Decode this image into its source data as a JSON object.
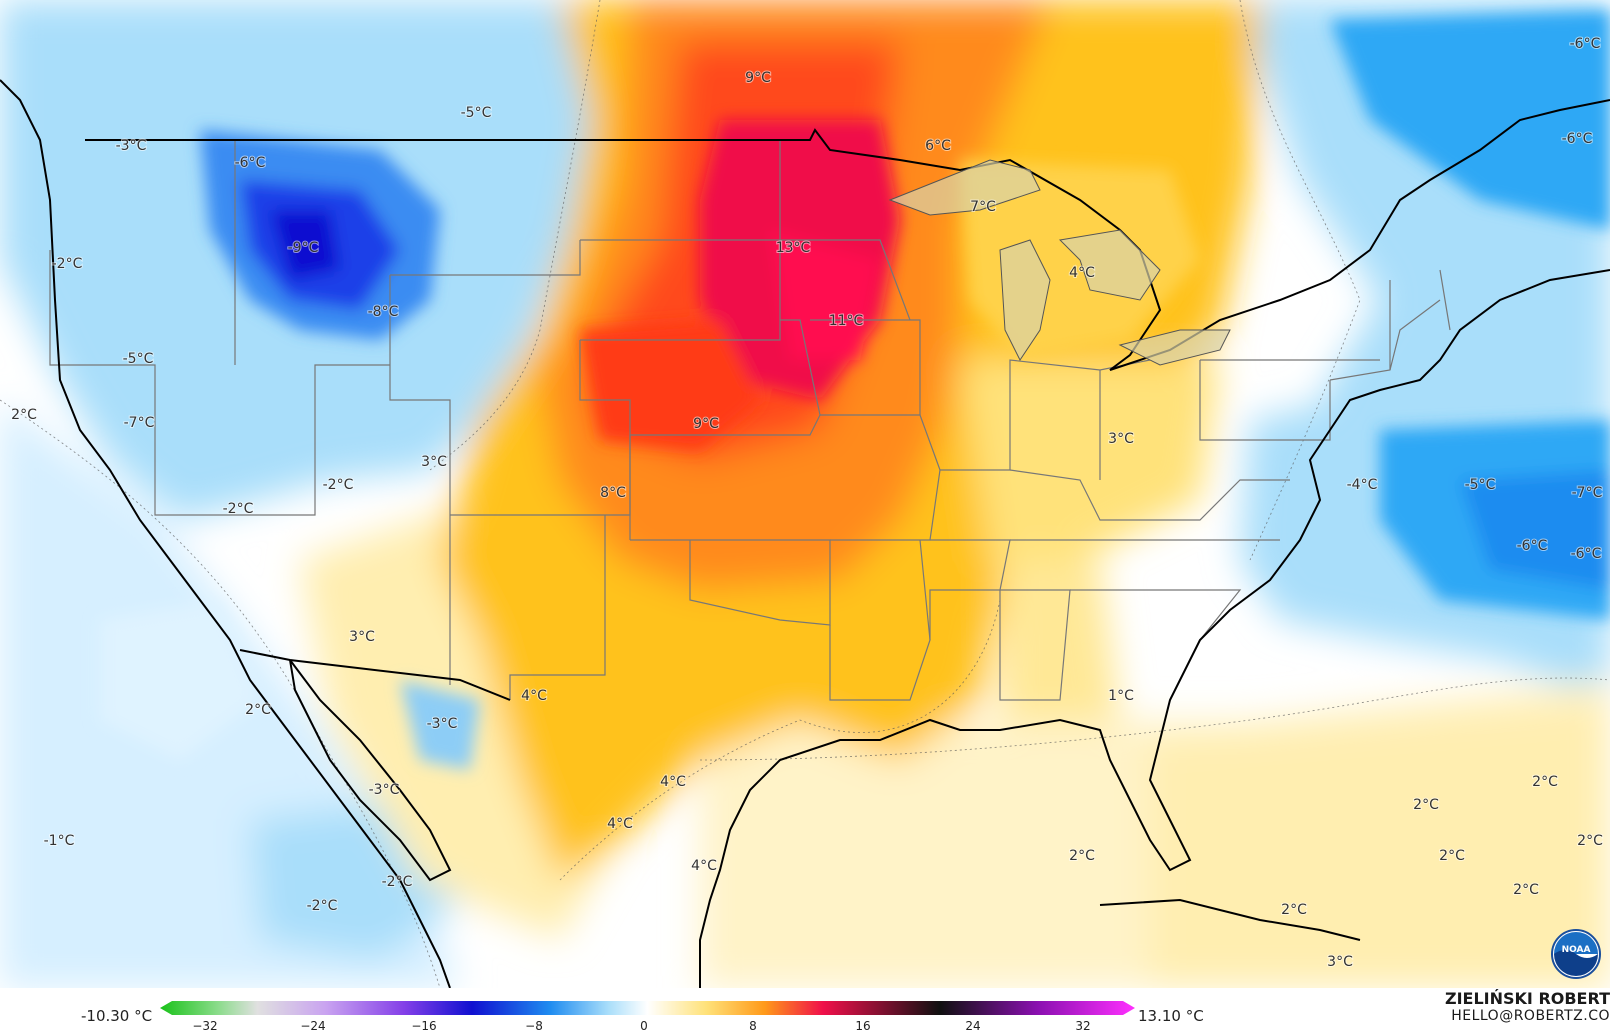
{
  "map": {
    "labels": [
      {
        "text": "9°C"
      },
      {
        "text": "6°C"
      },
      {
        "text": "-5°C"
      },
      {
        "text": "-3°C"
      },
      {
        "text": "-6°C"
      },
      {
        "text": "-9°C"
      },
      {
        "text": "-8°C"
      },
      {
        "text": "-2°C"
      },
      {
        "text": "-5°C"
      },
      {
        "text": "2°C"
      },
      {
        "text": "-7°C"
      },
      {
        "text": "3°C"
      },
      {
        "text": "-2°C"
      },
      {
        "text": "-2°C"
      },
      {
        "text": "13°C"
      },
      {
        "text": "11°C"
      },
      {
        "text": "9°C"
      },
      {
        "text": "8°C"
      },
      {
        "text": "7°C"
      },
      {
        "text": "4°C"
      },
      {
        "text": "3°C"
      },
      {
        "text": "-4°C"
      },
      {
        "text": "-5°C"
      },
      {
        "text": "-7°C"
      },
      {
        "text": "-6°C"
      },
      {
        "text": "-6°C"
      },
      {
        "text": "-6°C"
      },
      {
        "text": "-6°C"
      },
      {
        "text": "3°C"
      },
      {
        "text": "2°C"
      },
      {
        "text": "4°C"
      },
      {
        "text": "-3°C"
      },
      {
        "text": "-3°C"
      },
      {
        "text": "1°C"
      },
      {
        "text": "4°C"
      },
      {
        "text": "4°C"
      },
      {
        "text": "4°C"
      },
      {
        "text": "-1°C"
      },
      {
        "text": "-2°C"
      },
      {
        "text": "-2°C"
      },
      {
        "text": "2°C"
      },
      {
        "text": "2°C"
      },
      {
        "text": "2°C"
      },
      {
        "text": "2°C"
      },
      {
        "text": "2°C"
      },
      {
        "text": "2°C"
      },
      {
        "text": "2°C"
      },
      {
        "text": "3°C"
      }
    ]
  },
  "legend": {
    "min": "-10.30 °C",
    "max": "13.10 °C",
    "ticks": [
      "−32",
      "−24",
      "−16",
      "−8",
      "0",
      "8",
      "16",
      "24",
      "32"
    ]
  },
  "credit": {
    "name": "ZIELIŃSKI ROBERT",
    "email": "HELLO@ROBERTZ.CO"
  },
  "logo": {
    "text": "NOAA"
  },
  "colors": {
    "cold_deep": "#1a2ee0",
    "cold": "#2fa8f5",
    "cool": "#a9defa",
    "neutral": "#ffffff",
    "mild": "#ffeeb0",
    "warm": "#ffc21a",
    "hot": "#ff7a10",
    "hottest": "#f0104a"
  }
}
